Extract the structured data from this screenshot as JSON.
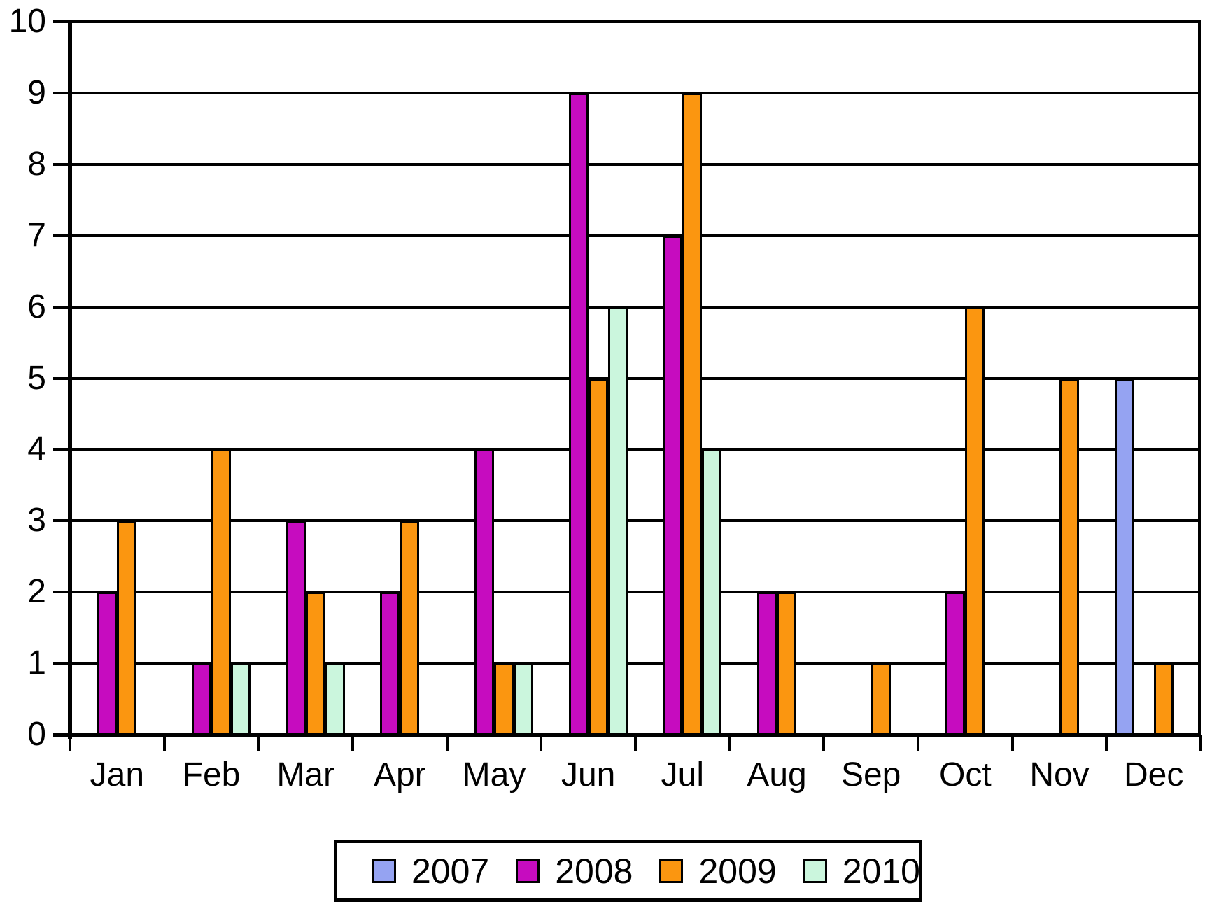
{
  "chart_data": {
    "type": "bar",
    "categories": [
      "Jan",
      "Feb",
      "Mar",
      "Apr",
      "May",
      "Jun",
      "Jul",
      "Aug",
      "Sep",
      "Oct",
      "Nov",
      "Dec"
    ],
    "series": [
      {
        "name": "2007",
        "color": "#95A3F2",
        "values": [
          0,
          0,
          0,
          0,
          0,
          0,
          0,
          0,
          0,
          0,
          0,
          5
        ]
      },
      {
        "name": "2008",
        "color": "#C60CBF",
        "values": [
          2,
          1,
          3,
          2,
          4,
          9,
          7,
          2,
          0,
          2,
          0,
          0
        ]
      },
      {
        "name": "2009",
        "color": "#FB9610",
        "values": [
          3,
          4,
          2,
          3,
          1,
          5,
          9,
          2,
          1,
          6,
          5,
          1
        ]
      },
      {
        "name": "2010",
        "color": "#CBF6DD",
        "values": [
          0,
          1,
          1,
          0,
          1,
          6,
          4,
          0,
          0,
          0,
          0,
          0
        ]
      }
    ],
    "title": "",
    "xlabel": "",
    "ylabel": "",
    "ylim": [
      0,
      10
    ],
    "yticks": [
      "0",
      "1",
      "2",
      "3",
      "4",
      "5",
      "6",
      "7",
      "8",
      "9",
      "10"
    ],
    "grid": true,
    "legend_position": "bottom",
    "bar_outline_color": "#000000",
    "axis_color": "#000000",
    "background_color": "#FFFFFF",
    "missing_bars_note": "zero values are not drawn"
  }
}
